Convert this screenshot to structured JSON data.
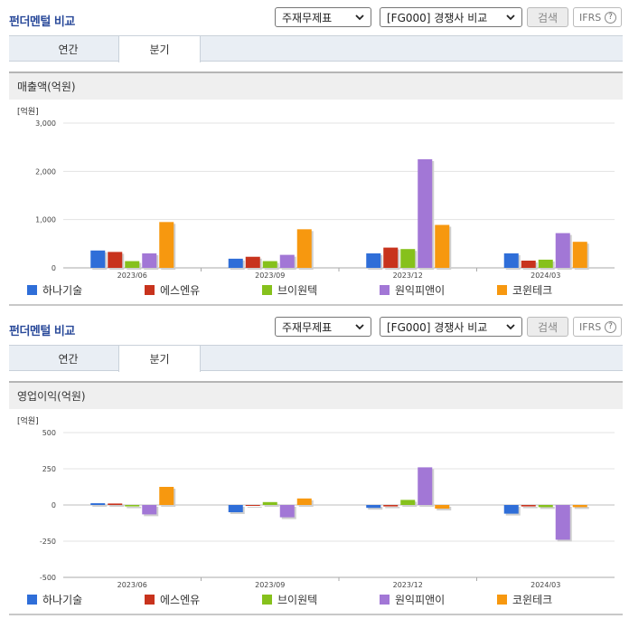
{
  "sections": [
    {
      "header": {
        "title": "펀더멘털 비교",
        "select1": "주재무제표",
        "select2": "[FG000] 경쟁사 비교",
        "search_label": "검색",
        "ifrs_label": "IFRS",
        "help_label": "?"
      },
      "tabs": [
        "연간",
        "분기"
      ],
      "active_tab": 1,
      "chart_title": "매출액(억원)"
    },
    {
      "header": {
        "title": "펀더멘털 비교",
        "select1": "주재무제표",
        "select2": "[FG000] 경쟁사 비교",
        "search_label": "검색",
        "ifrs_label": "IFRS",
        "help_label": "?"
      },
      "tabs": [
        "연간",
        "분기"
      ],
      "active_tab": 1,
      "chart_title": "영업이익(억원)"
    }
  ],
  "chart_data": [
    {
      "type": "bar",
      "title": "매출액(억원)",
      "unit_label": "[억원]",
      "categories": [
        "2023/06",
        "2023/09",
        "2023/12",
        "2024/03"
      ],
      "ylim": [
        0,
        3000
      ],
      "yticks": [
        0,
        1000,
        2000,
        3000
      ],
      "ytick_labels": [
        "0",
        "1,000",
        "2,000",
        "3,000"
      ],
      "grid": true,
      "legend_position": "bottom",
      "series": [
        {
          "name": "하나기술",
          "color": "#2f6ed8",
          "values": [
            360,
            190,
            300,
            300
          ]
        },
        {
          "name": "에스엔유",
          "color": "#c8331d",
          "values": [
            330,
            230,
            420,
            150
          ]
        },
        {
          "name": "브이원텍",
          "color": "#86c11c",
          "values": [
            140,
            140,
            390,
            170
          ]
        },
        {
          "name": "원익피앤이",
          "color": "#a277d6",
          "values": [
            300,
            270,
            2250,
            720
          ]
        },
        {
          "name": "코윈테크",
          "color": "#f7980f",
          "values": [
            950,
            800,
            890,
            540
          ]
        }
      ]
    },
    {
      "type": "bar",
      "title": "영업이익(억원)",
      "unit_label": "[억원]",
      "categories": [
        "2023/06",
        "2023/09",
        "2023/12",
        "2024/03"
      ],
      "ylim": [
        -500,
        500
      ],
      "yticks": [
        -500,
        -250,
        0,
        250,
        500
      ],
      "ytick_labels": [
        "-500",
        "-250",
        "0",
        "250",
        "500"
      ],
      "grid": true,
      "legend_position": "bottom",
      "series": [
        {
          "name": "하나기술",
          "color": "#2f6ed8",
          "values": [
            12,
            -50,
            -20,
            -60
          ]
        },
        {
          "name": "에스엔유",
          "color": "#c8331d",
          "values": [
            10,
            -5,
            -10,
            -10
          ]
        },
        {
          "name": "브이원텍",
          "color": "#86c11c",
          "values": [
            -10,
            20,
            35,
            -15
          ]
        },
        {
          "name": "원익피앤이",
          "color": "#a277d6",
          "values": [
            -65,
            -85,
            260,
            -240
          ]
        },
        {
          "name": "코윈테크",
          "color": "#f7980f",
          "values": [
            125,
            45,
            -25,
            -15
          ]
        }
      ]
    }
  ]
}
